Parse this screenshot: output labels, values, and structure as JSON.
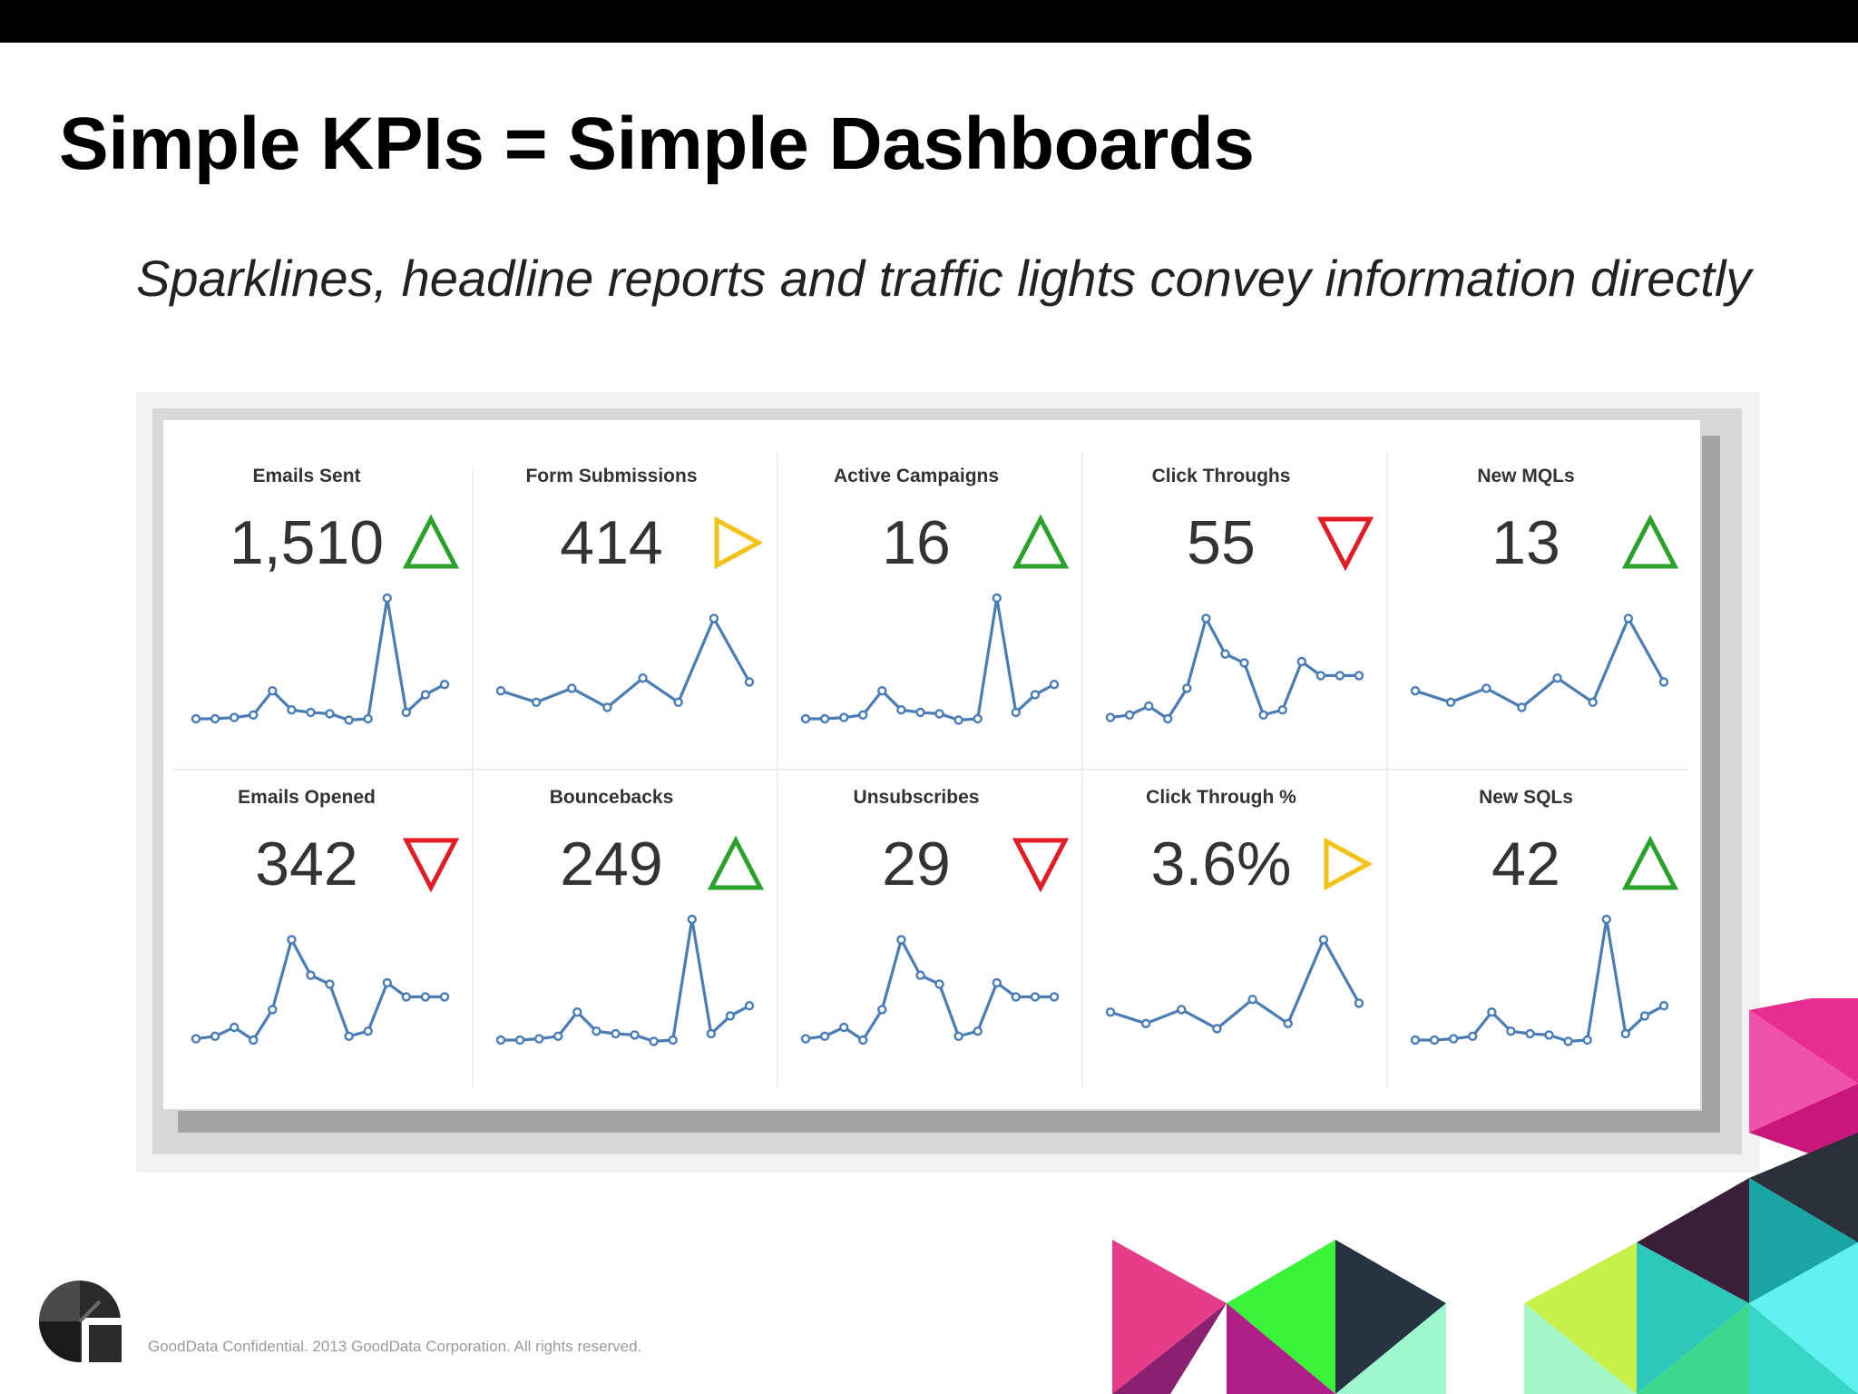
{
  "slide": {
    "title": "Simple KPIs = Simple Dashboards",
    "subtitle": "Sparklines, headline reports and traffic lights convey information directly",
    "footer": "GoodData Confidential. 2013 GoodData Corporation. All rights reserved."
  },
  "colors": {
    "up": "#2aa12a",
    "neutral": "#f2c21b",
    "down": "#e21b24",
    "spark": "#4a7cb5"
  },
  "dashboard": {
    "tiles": [
      {
        "title": "Emails Sent",
        "value": "1,510",
        "trend": "up",
        "spark": [
          0.05,
          0.05,
          0.06,
          0.08,
          0.27,
          0.12,
          0.1,
          0.09,
          0.04,
          0.05,
          1.0,
          0.1,
          0.24,
          0.32
        ]
      },
      {
        "title": "Form Submissions",
        "value": "414",
        "trend": "neutral",
        "spark": [
          0.27,
          0.18,
          0.29,
          0.14,
          0.37,
          0.18,
          0.84,
          0.34
        ]
      },
      {
        "title": "Active Campaigns",
        "value": "16",
        "trend": "up",
        "spark": [
          0.05,
          0.05,
          0.06,
          0.08,
          0.27,
          0.12,
          0.1,
          0.09,
          0.04,
          0.05,
          1.0,
          0.1,
          0.24,
          0.32
        ]
      },
      {
        "title": "Click Throughs",
        "value": "55",
        "trend": "down",
        "spark": [
          0.06,
          0.08,
          0.15,
          0.05,
          0.29,
          0.84,
          0.56,
          0.49,
          0.08,
          0.12,
          0.5,
          0.39,
          0.39,
          0.39
        ]
      },
      {
        "title": "New MQLs",
        "value": "13",
        "trend": "up",
        "spark": [
          0.27,
          0.18,
          0.29,
          0.14,
          0.37,
          0.18,
          0.84,
          0.34
        ]
      },
      {
        "title": "Emails Opened",
        "value": "342",
        "trend": "down",
        "spark": [
          0.06,
          0.08,
          0.15,
          0.05,
          0.29,
          0.84,
          0.56,
          0.49,
          0.08,
          0.12,
          0.5,
          0.39,
          0.39,
          0.39
        ]
      },
      {
        "title": "Bouncebacks",
        "value": "249",
        "trend": "up",
        "spark": [
          0.05,
          0.05,
          0.06,
          0.08,
          0.27,
          0.12,
          0.1,
          0.09,
          0.04,
          0.05,
          1.0,
          0.1,
          0.24,
          0.32
        ]
      },
      {
        "title": "Unsubscribes",
        "value": "29",
        "trend": "down",
        "spark": [
          0.06,
          0.08,
          0.15,
          0.05,
          0.29,
          0.84,
          0.56,
          0.49,
          0.08,
          0.12,
          0.5,
          0.39,
          0.39,
          0.39
        ]
      },
      {
        "title": "Click Through %",
        "value": "3.6%",
        "trend": "neutral",
        "spark": [
          0.27,
          0.18,
          0.29,
          0.14,
          0.37,
          0.18,
          0.84,
          0.34
        ]
      },
      {
        "title": "New SQLs",
        "value": "42",
        "trend": "up",
        "spark": [
          0.05,
          0.05,
          0.06,
          0.08,
          0.27,
          0.12,
          0.1,
          0.09,
          0.04,
          0.05,
          1.0,
          0.1,
          0.24,
          0.32
        ]
      }
    ]
  }
}
